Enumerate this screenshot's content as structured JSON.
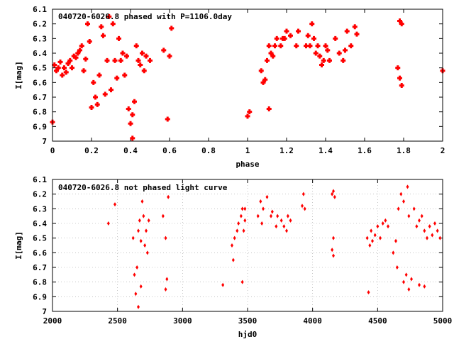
{
  "colors": {
    "points": "#ff0000",
    "frame": "#000000",
    "grid": "#a0a0a0"
  },
  "chart_data": [
    {
      "type": "scatter",
      "title": "040720-6026.8 phased with P=1106.0day",
      "xlabel": "phase",
      "ylabel": "I[mag]",
      "xlim": [
        0,
        2
      ],
      "ylim": [
        7,
        6.1
      ],
      "y_inverted": true,
      "grid": false,
      "marker": "filled-cross",
      "xticks": [
        "0",
        "0.2",
        "0.4",
        "0.6",
        "0.8",
        "1",
        "1.2",
        "1.4",
        "1.6",
        "1.8",
        "2"
      ],
      "yticks": [
        "6.1",
        "6.2",
        "6.3",
        "6.4",
        "6.5",
        "6.6",
        "6.7",
        "6.8",
        "6.9",
        "7"
      ],
      "series": [
        {
          "points": [
            [
              0.0,
              6.87
            ],
            [
              0.01,
              6.48
            ],
            [
              0.02,
              6.52
            ],
            [
              0.03,
              6.5
            ],
            [
              0.04,
              6.46
            ],
            [
              0.05,
              6.55
            ],
            [
              0.06,
              6.5
            ],
            [
              0.07,
              6.53
            ],
            [
              0.08,
              6.47
            ],
            [
              0.09,
              6.45
            ],
            [
              0.1,
              6.5
            ],
            [
              0.11,
              6.42
            ],
            [
              0.12,
              6.43
            ],
            [
              0.13,
              6.4
            ],
            [
              0.14,
              6.38
            ],
            [
              0.15,
              6.35
            ],
            [
              0.16,
              6.52
            ],
            [
              0.17,
              6.44
            ],
            [
              0.18,
              6.2
            ],
            [
              0.19,
              6.32
            ],
            [
              0.2,
              6.77
            ],
            [
              0.21,
              6.6
            ],
            [
              0.22,
              6.7
            ],
            [
              0.23,
              6.75
            ],
            [
              0.24,
              6.55
            ],
            [
              0.25,
              6.22
            ],
            [
              0.26,
              6.28
            ],
            [
              0.27,
              6.68
            ],
            [
              0.28,
              6.45
            ],
            [
              0.29,
              6.15
            ],
            [
              0.3,
              6.65
            ],
            [
              0.31,
              6.2
            ],
            [
              0.32,
              6.45
            ],
            [
              0.33,
              6.57
            ],
            [
              0.34,
              6.3
            ],
            [
              0.35,
              6.45
            ],
            [
              0.36,
              6.4
            ],
            [
              0.37,
              6.55
            ],
            [
              0.38,
              6.42
            ],
            [
              0.39,
              6.78
            ],
            [
              0.4,
              6.88
            ],
            [
              0.41,
              6.82
            ],
            [
              0.42,
              6.73
            ],
            [
              0.43,
              6.35
            ],
            [
              0.44,
              6.45
            ],
            [
              0.45,
              6.48
            ],
            [
              0.46,
              6.4
            ],
            [
              0.47,
              6.52
            ],
            [
              0.48,
              6.42
            ],
            [
              0.5,
              6.45
            ],
            [
              0.41,
              6.98
            ],
            [
              0.57,
              6.38
            ],
            [
              0.59,
              6.85
            ],
            [
              0.6,
              6.42
            ],
            [
              0.61,
              6.23
            ],
            [
              1.0,
              6.83
            ],
            [
              1.01,
              6.8
            ],
            [
              1.07,
              6.52
            ],
            [
              1.08,
              6.6
            ],
            [
              1.09,
              6.58
            ],
            [
              1.1,
              6.45
            ],
            [
              1.11,
              6.35
            ],
            [
              1.12,
              6.4
            ],
            [
              1.13,
              6.42
            ],
            [
              1.14,
              6.35
            ],
            [
              1.11,
              6.78
            ],
            [
              1.15,
              6.3
            ],
            [
              1.17,
              6.35
            ],
            [
              1.18,
              6.3
            ],
            [
              1.19,
              6.3
            ],
            [
              1.2,
              6.25
            ],
            [
              1.22,
              6.28
            ],
            [
              1.25,
              6.35
            ],
            [
              1.26,
              6.25
            ],
            [
              1.3,
              6.35
            ],
            [
              1.31,
              6.28
            ],
            [
              1.32,
              6.35
            ],
            [
              1.33,
              6.2
            ],
            [
              1.34,
              6.3
            ],
            [
              1.35,
              6.4
            ],
            [
              1.36,
              6.35
            ],
            [
              1.37,
              6.42
            ],
            [
              1.38,
              6.48
            ],
            [
              1.39,
              6.45
            ],
            [
              1.4,
              6.35
            ],
            [
              1.41,
              6.38
            ],
            [
              1.42,
              6.45
            ],
            [
              1.45,
              6.3
            ],
            [
              1.47,
              6.4
            ],
            [
              1.49,
              6.45
            ],
            [
              1.5,
              6.38
            ],
            [
              1.51,
              6.25
            ],
            [
              1.53,
              6.35
            ],
            [
              1.55,
              6.22
            ],
            [
              1.56,
              6.27
            ],
            [
              1.77,
              6.5
            ],
            [
              1.78,
              6.57
            ],
            [
              1.78,
              6.18
            ],
            [
              1.79,
              6.2
            ],
            [
              1.79,
              6.62
            ],
            [
              2.0,
              6.52
            ]
          ]
        }
      ]
    },
    {
      "type": "scatter",
      "title": "040720-6026.8 not phased light curve",
      "xlabel": "hjd0",
      "ylabel": "I[mag]",
      "xlim": [
        2000,
        5000
      ],
      "ylim": [
        7,
        6.1
      ],
      "y_inverted": true,
      "grid": true,
      "marker": "diamond",
      "xticks": [
        "2000",
        "2500",
        "3000",
        "3500",
        "4000",
        "4500",
        "5000"
      ],
      "yticks": [
        "6.1",
        "6.2",
        "6.3",
        "6.4",
        "6.5",
        "6.6",
        "6.7",
        "6.8",
        "6.9",
        "7"
      ],
      "series": [
        {
          "points": [
            [
              2430,
              6.4
            ],
            [
              2480,
              6.27
            ],
            [
              2620,
              6.5
            ],
            [
              2630,
              6.75
            ],
            [
              2640,
              6.88
            ],
            [
              2650,
              6.7
            ],
            [
              2660,
              6.45
            ],
            [
              2670,
              6.38
            ],
            [
              2680,
              6.52
            ],
            [
              2690,
              6.25
            ],
            [
              2700,
              6.35
            ],
            [
              2710,
              6.55
            ],
            [
              2720,
              6.45
            ],
            [
              2730,
              6.6
            ],
            [
              2740,
              6.38
            ],
            [
              2660,
              6.97
            ],
            [
              2680,
              6.83
            ],
            [
              2850,
              6.35
            ],
            [
              2870,
              6.5
            ],
            [
              2880,
              6.78
            ],
            [
              2890,
              6.22
            ],
            [
              2870,
              6.85
            ],
            [
              3310,
              6.82
            ],
            [
              3380,
              6.55
            ],
            [
              3390,
              6.65
            ],
            [
              3400,
              6.5
            ],
            [
              3420,
              6.45
            ],
            [
              3430,
              6.4
            ],
            [
              3450,
              6.35
            ],
            [
              3460,
              6.3
            ],
            [
              3470,
              6.45
            ],
            [
              3480,
              6.38
            ],
            [
              3460,
              6.8
            ],
            [
              3480,
              6.3
            ],
            [
              3580,
              6.35
            ],
            [
              3600,
              6.25
            ],
            [
              3610,
              6.4
            ],
            [
              3620,
              6.3
            ],
            [
              3650,
              6.22
            ],
            [
              3680,
              6.35
            ],
            [
              3690,
              6.32
            ],
            [
              3720,
              6.42
            ],
            [
              3730,
              6.35
            ],
            [
              3760,
              6.38
            ],
            [
              3780,
              6.42
            ],
            [
              3800,
              6.45
            ],
            [
              3810,
              6.35
            ],
            [
              3830,
              6.38
            ],
            [
              3920,
              6.28
            ],
            [
              3930,
              6.2
            ],
            [
              3940,
              6.3
            ],
            [
              4150,
              6.2
            ],
            [
              4160,
              6.18
            ],
            [
              4170,
              6.22
            ],
            [
              4150,
              6.58
            ],
            [
              4160,
              6.62
            ],
            [
              4160,
              6.5
            ],
            [
              4420,
              6.5
            ],
            [
              4430,
              6.87
            ],
            [
              4440,
              6.55
            ],
            [
              4450,
              6.45
            ],
            [
              4460,
              6.52
            ],
            [
              4480,
              6.48
            ],
            [
              4500,
              6.42
            ],
            [
              4520,
              6.5
            ],
            [
              4540,
              6.4
            ],
            [
              4560,
              6.38
            ],
            [
              4580,
              6.42
            ],
            [
              4620,
              6.6
            ],
            [
              4640,
              6.52
            ],
            [
              4650,
              6.7
            ],
            [
              4660,
              6.3
            ],
            [
              4680,
              6.2
            ],
            [
              4700,
              6.25
            ],
            [
              4720,
              6.75
            ],
            [
              4730,
              6.15
            ],
            [
              4740,
              6.35
            ],
            [
              4760,
              6.78
            ],
            [
              4780,
              6.3
            ],
            [
              4800,
              6.42
            ],
            [
              4820,
              6.38
            ],
            [
              4840,
              6.35
            ],
            [
              4860,
              6.45
            ],
            [
              4880,
              6.5
            ],
            [
              4900,
              6.42
            ],
            [
              4920,
              6.48
            ],
            [
              4940,
              6.4
            ],
            [
              4960,
              6.45
            ],
            [
              4980,
              6.5
            ],
            [
              4700,
              6.8
            ],
            [
              4740,
              6.85
            ],
            [
              4820,
              6.82
            ],
            [
              4860,
              6.83
            ]
          ]
        }
      ]
    }
  ]
}
